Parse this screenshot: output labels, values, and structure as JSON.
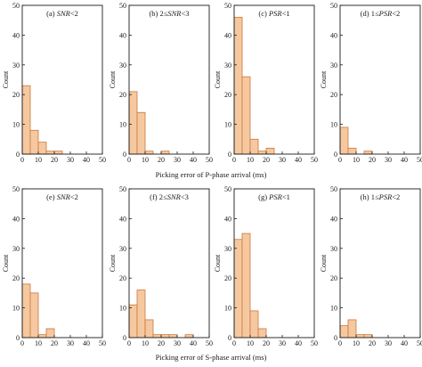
{
  "figure": {
    "xlabel_top": "Picking error of P-phase arrival (ms)",
    "xlabel_bottom": "Picking error of S-phase arrival (ms)",
    "bar_fill": "#f6c8a0",
    "bar_stroke": "#c8783c",
    "axis_color": "#1a1a1a"
  },
  "chart_data": [
    {
      "type": "bar",
      "row": 0,
      "col": 0,
      "label": "(a) SNR<2",
      "label_prefix": "(a) ",
      "label_var": "SNR",
      "label_suffix": "<2",
      "ylabel": "Count",
      "xlim": [
        0,
        50
      ],
      "ylim": [
        0,
        50
      ],
      "bin_width": 5,
      "xticks": [
        0,
        10,
        20,
        30,
        40,
        50
      ],
      "yticks": [
        0,
        10,
        20,
        30,
        40,
        50
      ],
      "bin_starts": [
        0,
        5,
        10,
        15,
        20
      ],
      "values": [
        23,
        8,
        4,
        1,
        1
      ]
    },
    {
      "type": "bar",
      "row": 0,
      "col": 1,
      "label": "(b) 2≤SNR<3",
      "label_prefix": "(b) 2≤",
      "label_var": "SNR",
      "label_suffix": "<3",
      "ylabel": "Count",
      "xlim": [
        0,
        50
      ],
      "ylim": [
        0,
        50
      ],
      "bin_width": 5,
      "xticks": [
        0,
        10,
        20,
        30,
        40,
        50
      ],
      "yticks": [
        0,
        10,
        20,
        30,
        40,
        50
      ],
      "bin_starts": [
        0,
        5,
        10,
        15,
        20,
        25,
        30
      ],
      "values": [
        21,
        14,
        1,
        0,
        1,
        0,
        0
      ]
    },
    {
      "type": "bar",
      "row": 0,
      "col": 2,
      "label": "(c) PSR<1",
      "label_prefix": "(c) ",
      "label_var": "PSR",
      "label_suffix": "<1",
      "ylabel": "Count",
      "xlim": [
        0,
        50
      ],
      "ylim": [
        0,
        50
      ],
      "bin_width": 5,
      "xticks": [
        0,
        10,
        20,
        30,
        40,
        50
      ],
      "yticks": [
        0,
        10,
        20,
        30,
        40,
        50
      ],
      "bin_starts": [
        0,
        5,
        10,
        15,
        20
      ],
      "values": [
        46,
        26,
        5,
        1,
        2
      ]
    },
    {
      "type": "bar",
      "row": 0,
      "col": 3,
      "label": "(d) 1≤PSR<2",
      "label_prefix": "(d) 1≤",
      "label_var": "PSR",
      "label_suffix": "<2",
      "ylabel": "Count",
      "xlim": [
        0,
        50
      ],
      "ylim": [
        0,
        50
      ],
      "bin_width": 5,
      "xticks": [
        0,
        10,
        20,
        30,
        40,
        50
      ],
      "yticks": [
        0,
        10,
        20,
        30,
        40,
        50
      ],
      "bin_starts": [
        0,
        5,
        10,
        15
      ],
      "values": [
        9,
        2,
        0,
        1
      ]
    },
    {
      "type": "bar",
      "row": 1,
      "col": 0,
      "label": "(e) SNR<2",
      "label_prefix": "(e) ",
      "label_var": "SNR",
      "label_suffix": "<2",
      "ylabel": "Count",
      "xlim": [
        0,
        50
      ],
      "ylim": [
        0,
        50
      ],
      "bin_width": 5,
      "xticks": [
        0,
        10,
        20,
        30,
        40,
        50
      ],
      "yticks": [
        0,
        10,
        20,
        30,
        40,
        50
      ],
      "bin_starts": [
        0,
        5,
        10,
        15
      ],
      "values": [
        18,
        15,
        1,
        3
      ]
    },
    {
      "type": "bar",
      "row": 1,
      "col": 1,
      "label": "(f) 2≤SNR<3",
      "label_prefix": "(f) 2≤",
      "label_var": "SNR",
      "label_suffix": "<3",
      "ylabel": "Count",
      "xlim": [
        0,
        50
      ],
      "ylim": [
        0,
        50
      ],
      "bin_width": 5,
      "xticks": [
        0,
        10,
        20,
        30,
        40,
        50
      ],
      "yticks": [
        0,
        10,
        20,
        30,
        40,
        50
      ],
      "bin_starts": [
        0,
        5,
        10,
        15,
        20,
        25,
        30,
        35
      ],
      "values": [
        11,
        16,
        6,
        1,
        1,
        1,
        0,
        1
      ]
    },
    {
      "type": "bar",
      "row": 1,
      "col": 2,
      "label": "(g) PSR<1",
      "label_prefix": "(g) ",
      "label_var": "PSR",
      "label_suffix": "<1",
      "ylabel": "Count",
      "xlim": [
        0,
        50
      ],
      "ylim": [
        0,
        50
      ],
      "bin_width": 5,
      "xticks": [
        0,
        10,
        20,
        30,
        40,
        50
      ],
      "yticks": [
        0,
        10,
        20,
        30,
        40,
        50
      ],
      "bin_starts": [
        0,
        5,
        10,
        15
      ],
      "values": [
        33,
        35,
        9,
        3
      ]
    },
    {
      "type": "bar",
      "row": 1,
      "col": 3,
      "label": "(h) 1≤PSR<2",
      "label_prefix": "(h) 1≤",
      "label_var": "PSR",
      "label_suffix": "<2",
      "ylabel": "Count",
      "xlim": [
        0,
        50
      ],
      "ylim": [
        0,
        50
      ],
      "bin_width": 5,
      "xticks": [
        0,
        10,
        20,
        30,
        40,
        50
      ],
      "yticks": [
        0,
        10,
        20,
        30,
        40,
        50
      ],
      "bin_starts": [
        0,
        5,
        10,
        15
      ],
      "values": [
        4,
        6,
        1,
        1
      ]
    }
  ]
}
